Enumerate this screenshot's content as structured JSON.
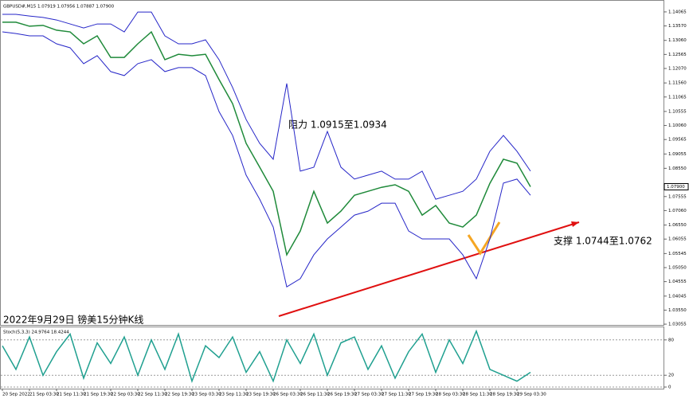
{
  "chart_data": [
    {
      "type": "line",
      "title": "GBPUSD#,M15 1.07919 1.07956 1.07887 1.07900",
      "annotations": [
        "阻力 1.0915至1.0934",
        "支撑 1.0744至1.0762",
        "2022年9月29日 镑美15分钟K线"
      ],
      "categories": [
        "20 Sep 2022",
        null,
        "21 Sep 03:30",
        null,
        "21 Sep 11:30",
        null,
        "21 Sep 19:30",
        null,
        "22 Sep 03:30",
        null,
        "22 Sep 11:30",
        null,
        "22 Sep 19:30",
        null,
        "23 Sep 03:30",
        null,
        "23 Sep 11:30",
        null,
        "23 Sep 19:30",
        null,
        "26 Sep 03:30",
        null,
        "26 Sep 11:30",
        null,
        "26 Sep 19:30",
        null,
        "27 Sep 03:30",
        null,
        "27 Sep 11:30",
        null,
        "27 Sep 19:30",
        null,
        "28 Sep 03:30",
        null,
        "28 Sep 11:30",
        null,
        "28 Sep 19:30",
        null,
        "29 Sep 03:30",
        null
      ],
      "series": [
        {
          "color": "#1f8a3a",
          "values": [
            1.137,
            1.137,
            1.1356,
            1.1359,
            1.1342,
            1.1336,
            1.1294,
            1.1322,
            1.1246,
            1.1246,
            1.1294,
            1.1336,
            1.1238,
            1.1257,
            1.1252,
            1.1257,
            1.1168,
            1.1083,
            1.0943,
            1.0859,
            1.0774,
            1.055,
            1.0634,
            1.0774,
            1.0662,
            1.0704,
            1.076,
            1.0774,
            1.0788,
            1.0797,
            1.0774,
            1.069,
            1.0724,
            1.0662,
            1.0648,
            1.069,
            1.0802,
            1.0887,
            1.0873,
            1.079
          ]
        },
        {
          "color": "#2626c8",
          "values": [
            1.1398,
            1.1398,
            1.1392,
            1.1387,
            1.1378,
            1.1364,
            1.135,
            1.1364,
            1.1364,
            1.1336,
            1.1406,
            1.1406,
            1.1322,
            1.1294,
            1.1294,
            1.1308,
            1.1238,
            1.114,
            1.1027,
            1.0943,
            1.0887,
            1.1154,
            1.0845,
            1.0859,
            1.0985,
            1.0859,
            1.0817,
            1.0831,
            1.0845,
            1.0817,
            1.0817,
            1.0845,
            1.0746,
            1.076,
            1.0774,
            1.0817,
            1.0915,
            1.0971,
            1.0915,
            1.0845
          ]
        },
        {
          "color": "#2626c8",
          "values": [
            1.1336,
            1.133,
            1.1322,
            1.1322,
            1.1294,
            1.128,
            1.1224,
            1.1252,
            1.1196,
            1.1182,
            1.1224,
            1.1238,
            1.1196,
            1.121,
            1.121,
            1.1182,
            1.1055,
            1.0971,
            1.0831,
            1.0746,
            1.0648,
            1.0437,
            1.0466,
            1.055,
            1.0606,
            1.0648,
            1.069,
            1.0704,
            1.0732,
            1.0732,
            1.0634,
            1.0606,
            1.0606,
            1.0606,
            1.055,
            1.0466,
            1.0606,
            1.0803,
            1.0817,
            1.076
          ]
        }
      ],
      "ylim": [
        1.03,
        1.144
      ],
      "yticks": [
        1.14065,
        {
          "value": 1.1357,
          "label": "1.13570"
        },
        {
          "value": 1.1306,
          "label": "1.13060"
        },
        1.12565,
        {
          "value": 1.1207,
          "label": "1.12070"
        },
        {
          "value": 1.1156,
          "label": "1.11560"
        },
        1.11065,
        1.10555,
        {
          "value": 1.1006,
          "label": "1.10060"
        },
        1.09565,
        1.09055,
        {
          "value": 1.0855,
          "label": "1.08550"
        },
        1.07555,
        {
          "value": 1.0706,
          "label": "1.07060"
        },
        {
          "value": 1.0655,
          "label": "1.06550"
        },
        1.06055,
        1.05545,
        {
          "value": 1.0505,
          "label": "1.05050"
        },
        1.04555,
        1.04045,
        {
          "value": 1.0355,
          "label": "1.03550"
        },
        1.03055
      ],
      "last_price": {
        "value": 1.079,
        "label": "1.07900"
      }
    },
    {
      "type": "line",
      "title": "Stoch(5,3,3) 24.9764 18.4244",
      "series": [
        {
          "color": "#20a090",
          "values": [
            70,
            30,
            85,
            20,
            60,
            90,
            15,
            75,
            40,
            85,
            20,
            80,
            30,
            90,
            10,
            70,
            50,
            85,
            25,
            60,
            10,
            80,
            40,
            90,
            20,
            75,
            85,
            30,
            70,
            15,
            60,
            90,
            25,
            80,
            40,
            95,
            30,
            20,
            10,
            25
          ]
        }
      ],
      "ylim": [
        0,
        100
      ],
      "yticks": [
        80,
        20,
        0
      ],
      "grid": true
    }
  ]
}
